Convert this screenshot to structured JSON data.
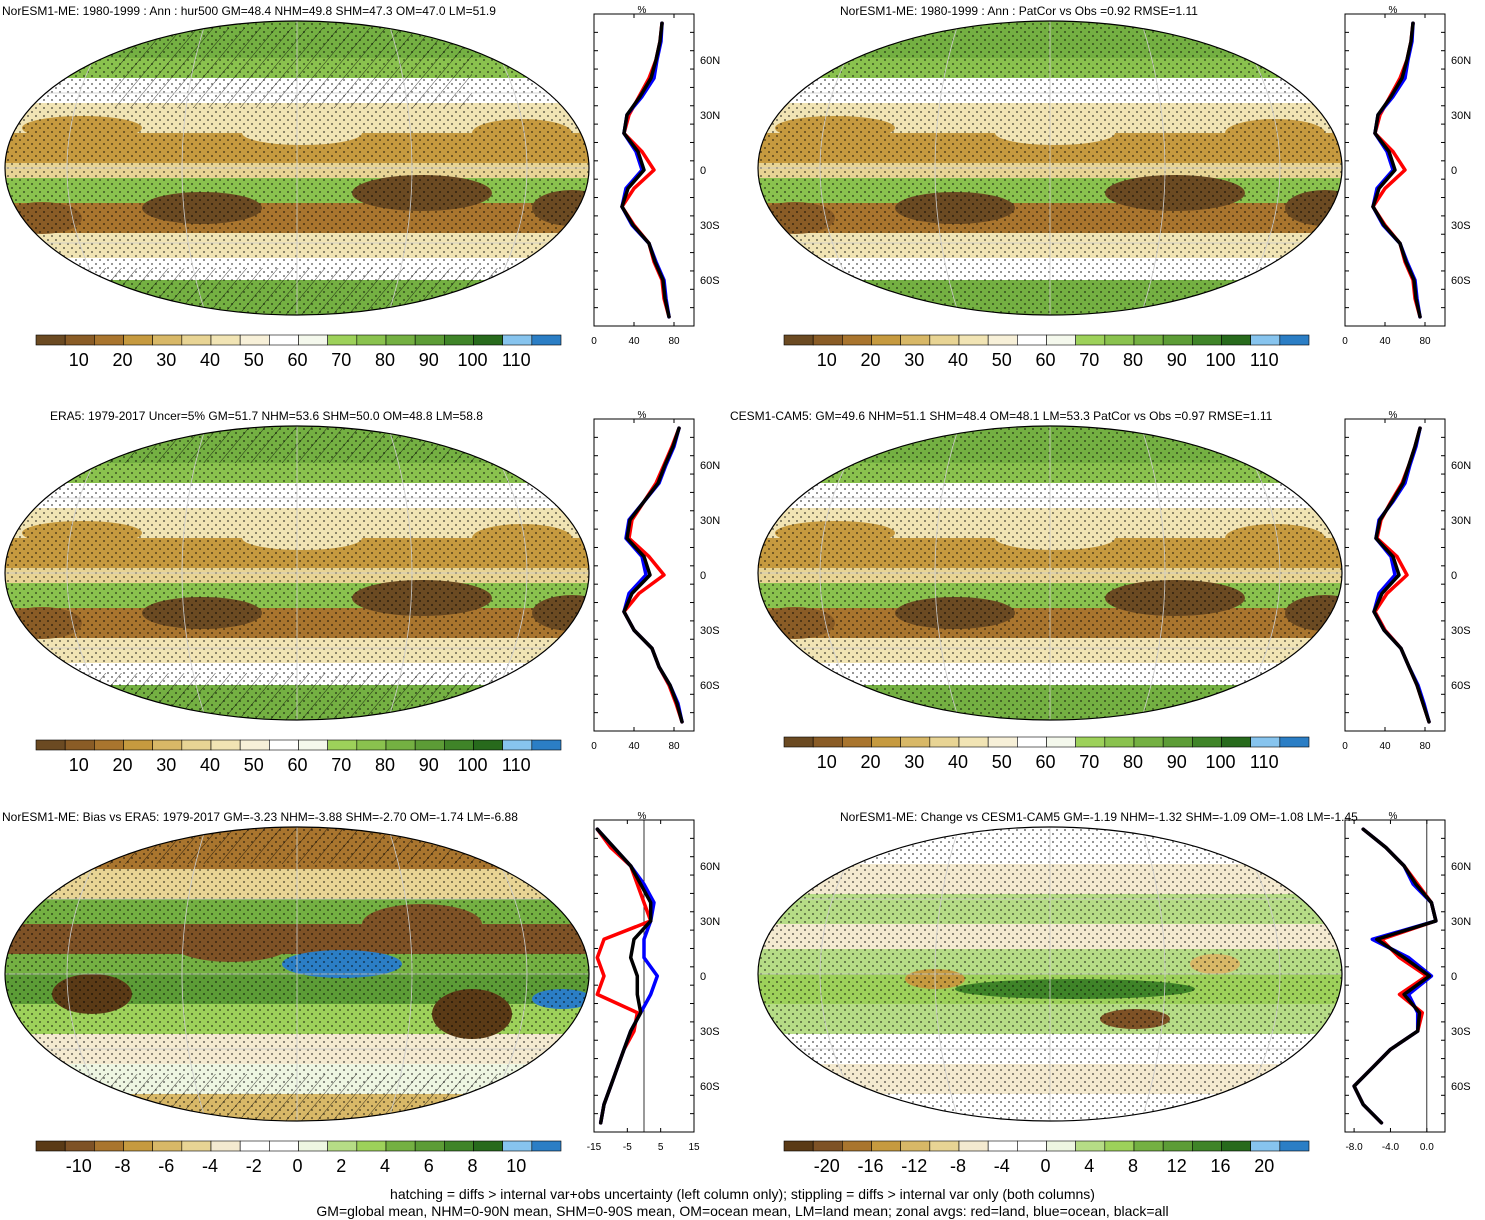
{
  "footer": {
    "line1": "hatching = diffs > internal var+obs uncertainty (left column only); stippling = diffs > internal var only (both columns)",
    "line2": "GM=global mean, NHM=0-90N mean, SHM=0-90S mean, OM=ocean mean, LM=land mean; zonal avgs: red=land, blue=ocean, black=all"
  },
  "colors": {
    "land": "#ff0000",
    "ocean": "#0000ff",
    "all": "#000000",
    "abs_palette": [
      "#6b4a22",
      "#8a5c26",
      "#a9752e",
      "#c69a3f",
      "#d8b867",
      "#e8d494",
      "#f1e4b4",
      "#f7f0d8",
      "#ffffff",
      "#f4f8ec",
      "#9dd15a",
      "#8ac24e",
      "#74b042",
      "#5c9c36",
      "#3f8428",
      "#276a1c",
      "#87c4ee",
      "#2b7ec5"
    ],
    "diff_palette": [
      "#5a3a16",
      "#7e5226",
      "#a9752e",
      "#c69a3f",
      "#d8b867",
      "#e8d494",
      "#f4ead0",
      "#ffffff",
      "#ffffff",
      "#eef6e2",
      "#b6dc86",
      "#9dd15a",
      "#74b042",
      "#5c9c36",
      "#3f8428",
      "#276a1c",
      "#87c4ee",
      "#2b7ec5"
    ]
  },
  "panels": [
    {
      "title": "NorESM1-ME: 1980-1999 : Ann : hur500 GM=48.4 NHM=49.8 SHM=47.3 OM=47.0 LM=51.9",
      "colorbar_labels": [
        "10",
        "20",
        "30",
        "40",
        "50",
        "60",
        "70",
        "80",
        "90",
        "100",
        "110"
      ],
      "profile": {
        "unit": "%",
        "x_ticks": [
          "0",
          "40",
          "80"
        ],
        "y_ticks": [
          "60N",
          "30N",
          "0",
          "30S",
          "60S"
        ]
      }
    },
    {
      "title": "NorESM1-ME: 1980-1999 : Ann : PatCor vs Obs =0.92 RMSE=1.11",
      "colorbar_labels": [
        "10",
        "20",
        "30",
        "40",
        "50",
        "60",
        "70",
        "80",
        "90",
        "100",
        "110"
      ],
      "profile": {
        "unit": "%",
        "x_ticks": [
          "0",
          "40",
          "80"
        ],
        "y_ticks": [
          "60N",
          "30N",
          "0",
          "30S",
          "60S"
        ]
      }
    },
    {
      "title": "ERA5: 1979-2017 Uncer=5% GM=51.7 NHM=53.6 SHM=50.0 OM=48.8 LM=58.8",
      "colorbar_labels": [
        "10",
        "20",
        "30",
        "40",
        "50",
        "60",
        "70",
        "80",
        "90",
        "100",
        "110"
      ],
      "profile": {
        "unit": "%",
        "x_ticks": [
          "0",
          "40",
          "80"
        ],
        "y_ticks": [
          "60N",
          "30N",
          "0",
          "30S",
          "60S"
        ]
      }
    },
    {
      "title": "CESM1-CAM5: GM=49.6 NHM=51.1 SHM=48.4 OM=48.1 LM=53.3 PatCor vs Obs =0.97 RMSE=1.11",
      "colorbar_labels": [
        "10",
        "20",
        "30",
        "40",
        "50",
        "60",
        "70",
        "80",
        "90",
        "100",
        "110"
      ],
      "profile": {
        "unit": "%",
        "x_ticks": [
          "0",
          "40",
          "80"
        ],
        "y_ticks": [
          "60N",
          "30N",
          "0",
          "30S",
          "60S"
        ]
      }
    },
    {
      "title": "NorESM1-ME: Bias vs ERA5: 1979-2017 GM=-3.23 NHM=-3.88 SHM=-2.70 OM=-1.74 LM=-6.88",
      "colorbar_labels": [
        "-10",
        "-8",
        "-6",
        "-4",
        "-2",
        "0",
        "2",
        "4",
        "6",
        "8",
        "10"
      ],
      "profile": {
        "unit": "%",
        "x_ticks": [
          "-15",
          "-5",
          "5",
          "15"
        ],
        "y_ticks": [
          "60N",
          "30N",
          "0",
          "30S",
          "60S"
        ]
      }
    },
    {
      "title": "NorESM1-ME: Change vs CESM1-CAM5 GM=-1.19 NHM=-1.32 SHM=-1.09 OM=-1.08 LM=-1.45",
      "colorbar_labels": [
        "-20",
        "-16",
        "-12",
        "-8",
        "-4",
        "0",
        "4",
        "8",
        "12",
        "16",
        "20"
      ],
      "profile": {
        "unit": "%",
        "x_ticks": [
          "-8.0",
          "-4.0",
          "0.0"
        ],
        "y_ticks": [
          "60N",
          "30N",
          "0",
          "30S",
          "60S"
        ]
      }
    }
  ],
  "chart_data": [
    {
      "type": "heatmap",
      "title": "NorESM1-ME: 1980-1999 : Ann : hur500 GM=48.4 NHM=49.8 SHM=47.3 OM=47.0 LM=51.9",
      "colorbar": [
        10,
        20,
        30,
        40,
        50,
        60,
        70,
        80,
        90,
        100,
        110
      ]
    },
    {
      "type": "line",
      "lat": [
        80,
        70,
        60,
        50,
        40,
        30,
        20,
        10,
        0,
        -10,
        -20,
        -30,
        -40,
        -50,
        -60,
        -70,
        -80
      ],
      "xlim": [
        0,
        100
      ],
      "series": [
        {
          "name": "red=land",
          "values": [
            68,
            66,
            62,
            55,
            45,
            35,
            30,
            48,
            60,
            40,
            28,
            40,
            55,
            60,
            68,
            70,
            75
          ]
        },
        {
          "name": "blue=ocean",
          "values": [
            68,
            67,
            63,
            60,
            48,
            33,
            30,
            42,
            48,
            32,
            28,
            38,
            55,
            62,
            70,
            72,
            75
          ]
        },
        {
          "name": "black=all",
          "values": [
            68,
            66,
            62,
            57,
            46,
            33,
            30,
            44,
            50,
            34,
            28,
            39,
            55,
            61,
            69,
            71,
            75
          ]
        }
      ]
    },
    {
      "type": "heatmap",
      "title": "NorESM1-ME: 1980-1999 : Ann : PatCor vs Obs =0.92 RMSE=1.11",
      "colorbar": [
        10,
        20,
        30,
        40,
        50,
        60,
        70,
        80,
        90,
        100,
        110
      ]
    },
    {
      "type": "line",
      "lat": [
        80,
        70,
        60,
        50,
        40,
        30,
        20,
        10,
        0,
        -10,
        -20,
        -30,
        -40,
        -50,
        -60,
        -70,
        -80
      ],
      "xlim": [
        0,
        100
      ],
      "series": [
        {
          "name": "red=land",
          "values": [
            68,
            66,
            62,
            55,
            45,
            35,
            30,
            48,
            60,
            40,
            28,
            40,
            55,
            60,
            68,
            70,
            75
          ]
        },
        {
          "name": "blue=ocean",
          "values": [
            68,
            67,
            63,
            60,
            48,
            33,
            30,
            42,
            48,
            32,
            28,
            38,
            55,
            62,
            70,
            72,
            75
          ]
        },
        {
          "name": "black=all",
          "values": [
            68,
            66,
            62,
            57,
            46,
            33,
            30,
            44,
            50,
            34,
            28,
            39,
            55,
            61,
            69,
            71,
            75
          ]
        }
      ]
    },
    {
      "type": "heatmap",
      "title": "ERA5: 1979-2017 Uncer=5% GM=51.7 NHM=53.6 SHM=50.0 OM=48.8 LM=58.8",
      "colorbar": [
        10,
        20,
        30,
        40,
        50,
        60,
        70,
        80,
        90,
        100,
        110
      ]
    },
    {
      "type": "line",
      "lat": [
        80,
        70,
        60,
        50,
        40,
        30,
        20,
        10,
        0,
        -10,
        -20,
        -30,
        -40,
        -50,
        -60,
        -70,
        -80
      ],
      "xlim": [
        0,
        100
      ],
      "series": [
        {
          "name": "red=land",
          "values": [
            85,
            78,
            70,
            62,
            50,
            38,
            35,
            55,
            70,
            45,
            30,
            40,
            58,
            65,
            75,
            82,
            88
          ]
        },
        {
          "name": "blue=ocean",
          "values": [
            85,
            80,
            72,
            65,
            50,
            35,
            32,
            48,
            52,
            35,
            30,
            40,
            58,
            65,
            76,
            84,
            88
          ]
        },
        {
          "name": "black=all",
          "values": [
            85,
            79,
            71,
            64,
            50,
            36,
            33,
            50,
            56,
            38,
            30,
            40,
            58,
            65,
            76,
            83,
            88
          ]
        }
      ]
    },
    {
      "type": "heatmap",
      "title": "CESM1-CAM5: GM=49.6 NHM=51.1 SHM=48.4 OM=48.1 LM=53.3 PatCor vs Obs =0.97 RMSE=1.11",
      "colorbar": [
        10,
        20,
        30,
        40,
        50,
        60,
        70,
        80,
        90,
        100,
        110
      ]
    },
    {
      "type": "line",
      "lat": [
        80,
        70,
        60,
        50,
        40,
        30,
        20,
        10,
        0,
        -10,
        -20,
        -30,
        -40,
        -50,
        -60,
        -70,
        -80
      ],
      "xlim": [
        0,
        100
      ],
      "series": [
        {
          "name": "red=land",
          "values": [
            75,
            70,
            64,
            57,
            46,
            36,
            32,
            52,
            62,
            42,
            30,
            40,
            56,
            64,
            72,
            78,
            84
          ]
        },
        {
          "name": "blue=ocean",
          "values": [
            75,
            71,
            65,
            60,
            48,
            34,
            31,
            46,
            50,
            34,
            29,
            39,
            56,
            64,
            73,
            79,
            84
          ]
        },
        {
          "name": "black=all",
          "values": [
            75,
            70,
            64,
            58,
            47,
            35,
            31,
            48,
            54,
            37,
            29,
            39,
            56,
            64,
            72,
            78,
            84
          ]
        }
      ]
    },
    {
      "type": "heatmap",
      "title": "NorESM1-ME: Bias vs ERA5: 1979-2017 GM=-3.23 NHM=-3.88 SHM=-2.70 OM=-1.74 LM=-6.88",
      "colorbar": [
        -10,
        -8,
        -6,
        -4,
        -2,
        0,
        2,
        4,
        6,
        8,
        10
      ]
    },
    {
      "type": "line",
      "lat": [
        80,
        70,
        60,
        50,
        40,
        30,
        20,
        10,
        0,
        -10,
        -20,
        -30,
        -40,
        -50,
        -60,
        -70,
        -80
      ],
      "xlim": [
        -15,
        15
      ],
      "series": [
        {
          "name": "red=land",
          "values": [
            -14,
            -10,
            -4,
            -2,
            0,
            2,
            -12,
            -14,
            -12,
            -14,
            -2,
            -3,
            -6,
            -8,
            -10,
            -12,
            -13
          ]
        },
        {
          "name": "blue=ocean",
          "values": [
            -14,
            -9,
            -4,
            0,
            3,
            2,
            0,
            0,
            4,
            2,
            -1,
            -4,
            -6,
            -8,
            -10,
            -12,
            -13
          ]
        },
        {
          "name": "black=all",
          "values": [
            -14,
            -9,
            -4,
            -1,
            2,
            2,
            -3,
            -4,
            -2,
            -2,
            -1,
            -4,
            -6,
            -8,
            -10,
            -12,
            -13
          ]
        }
      ]
    },
    {
      "type": "heatmap",
      "title": "NorESM1-ME: Change vs CESM1-CAM5 GM=-1.19 NHM=-1.32 SHM=-1.09 OM=-1.08 LM=-1.45",
      "colorbar": [
        -20,
        -16,
        -12,
        -8,
        -4,
        0,
        4,
        8,
        12,
        16,
        20
      ]
    },
    {
      "type": "line",
      "lat": [
        80,
        70,
        60,
        50,
        40,
        30,
        20,
        10,
        0,
        -10,
        -20,
        -30,
        -40,
        -50,
        -60,
        -70,
        -80
      ],
      "xlim": [
        -9,
        2
      ],
      "series": [
        {
          "name": "red=land",
          "values": [
            -7,
            -4.5,
            -2.5,
            -1,
            0.5,
            1,
            -5,
            -3,
            0,
            -3,
            -0.5,
            -1,
            -4,
            -6,
            -8,
            -7,
            -5
          ]
        },
        {
          "name": "blue=ocean",
          "values": [
            -7,
            -4.5,
            -2.5,
            -1.5,
            0.5,
            1,
            -6,
            -2,
            0.5,
            -2,
            -1,
            -1,
            -4,
            -6,
            -8,
            -7,
            -5
          ]
        },
        {
          "name": "black=all",
          "values": [
            -7,
            -4.5,
            -2.5,
            -1.2,
            0.5,
            1,
            -5.5,
            -2.5,
            0.3,
            -2.5,
            -0.8,
            -1,
            -4,
            -6,
            -8,
            -7,
            -5
          ]
        }
      ]
    }
  ]
}
